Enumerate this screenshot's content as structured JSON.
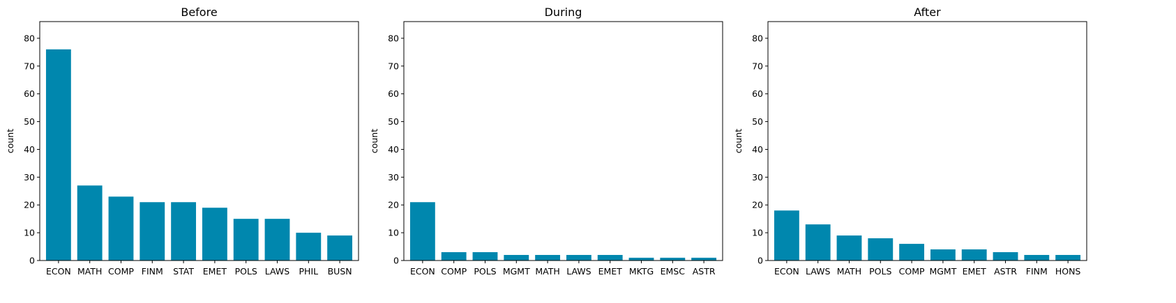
{
  "chart_data": [
    {
      "type": "bar",
      "title": "Before",
      "xlabel": "",
      "ylabel": "count",
      "ylim": [
        0,
        86
      ],
      "yticks": [
        0,
        10,
        20,
        30,
        40,
        50,
        60,
        70,
        80
      ],
      "categories": [
        "ECON",
        "MATH",
        "COMP",
        "FINM",
        "STAT",
        "EMET",
        "POLS",
        "LAWS",
        "PHIL",
        "BUSN"
      ],
      "values": [
        76,
        27,
        23,
        21,
        21,
        19,
        15,
        15,
        10,
        9
      ],
      "grid": false
    },
    {
      "type": "bar",
      "title": "During",
      "xlabel": "",
      "ylabel": "count",
      "ylim": [
        0,
        86
      ],
      "yticks": [
        0,
        10,
        20,
        30,
        40,
        50,
        60,
        70,
        80
      ],
      "categories": [
        "ECON",
        "COMP",
        "POLS",
        "MGMT",
        "MATH",
        "LAWS",
        "EMET",
        "MKTG",
        "EMSC",
        "ASTR"
      ],
      "values": [
        21,
        3,
        3,
        2,
        2,
        2,
        2,
        1,
        1,
        1
      ],
      "grid": false
    },
    {
      "type": "bar",
      "title": "After",
      "xlabel": "",
      "ylabel": "count",
      "ylim": [
        0,
        86
      ],
      "yticks": [
        0,
        10,
        20,
        30,
        40,
        50,
        60,
        70,
        80
      ],
      "categories": [
        "ECON",
        "LAWS",
        "MATH",
        "POLS",
        "COMP",
        "MGMT",
        "EMET",
        "ASTR",
        "FINM",
        "HONS"
      ],
      "values": [
        18,
        13,
        9,
        8,
        6,
        4,
        4,
        3,
        2,
        2
      ],
      "grid": false
    }
  ],
  "colors": {
    "bar": "#0087ae"
  }
}
